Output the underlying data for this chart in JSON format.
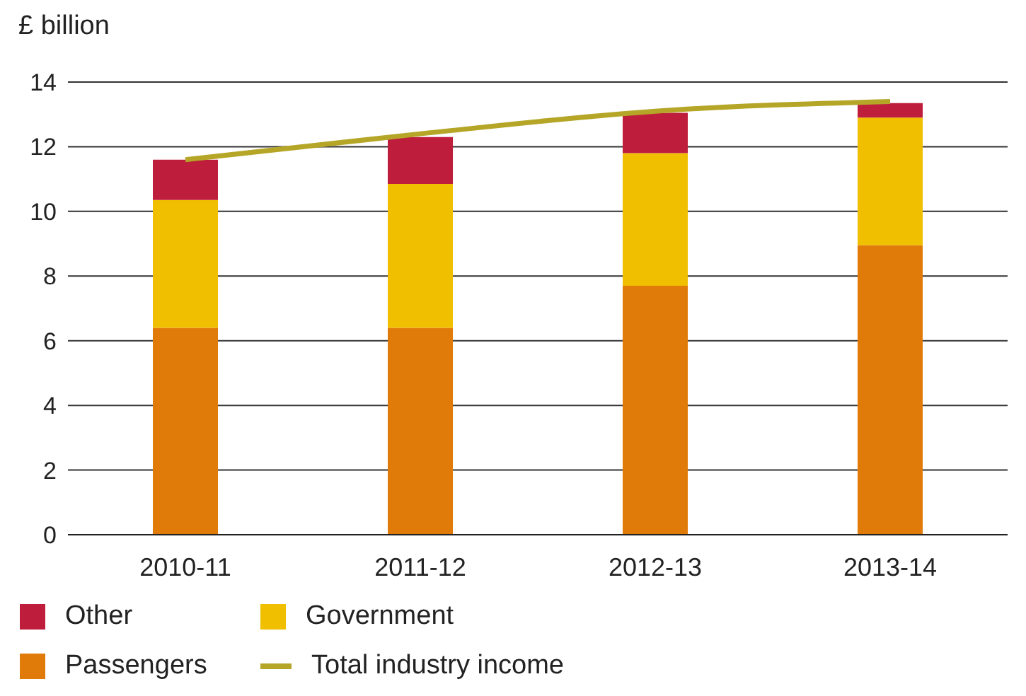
{
  "chart_data": {
    "type": "bar",
    "ylabel": "£ billion",
    "categories": [
      "2010-11",
      "2011-12",
      "2012-13",
      "2013-14"
    ],
    "stacked": true,
    "series": [
      {
        "name": "Passengers",
        "color": "#e07b0a",
        "values": [
          6.4,
          6.4,
          7.7,
          8.95
        ]
      },
      {
        "name": "Government",
        "color": "#f0bf00",
        "values": [
          3.95,
          4.45,
          4.1,
          3.95
        ]
      },
      {
        "name": "Other",
        "color": "#be1e3c",
        "values": [
          1.25,
          1.45,
          1.25,
          0.45
        ]
      },
      {
        "name": "Total industry income",
        "type": "line",
        "color": "#b5a628",
        "values": [
          11.6,
          12.4,
          13.1,
          13.4
        ]
      }
    ],
    "ylim": [
      0,
      14
    ],
    "yticks": [
      0,
      2,
      4,
      6,
      8,
      10,
      12,
      14
    ],
    "grid": "y",
    "legend": "bottom",
    "marker": "none"
  }
}
